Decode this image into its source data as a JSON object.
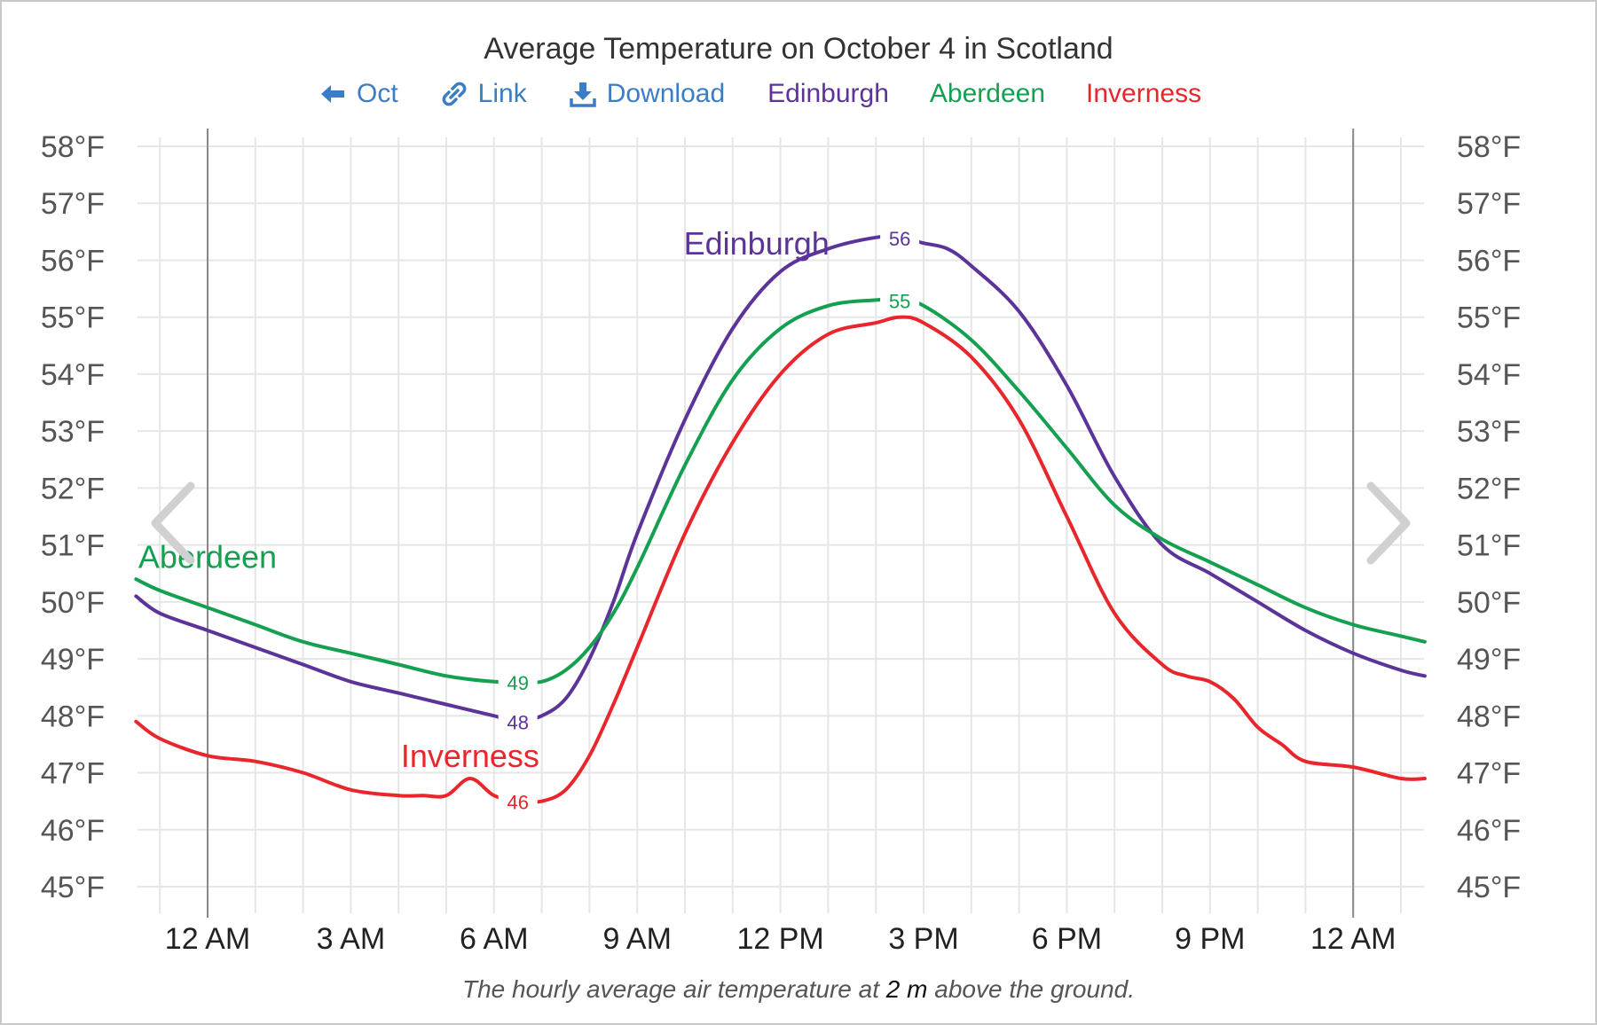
{
  "title": "Average Temperature on October 4 in Scotland",
  "toolbar": {
    "back_label": "Oct",
    "link_label": "Link",
    "download_label": "Download"
  },
  "legend": [
    {
      "name": "Edinburgh",
      "color": "#5b3399"
    },
    {
      "name": "Aberdeen",
      "color": "#14a050"
    },
    {
      "name": "Inverness",
      "color": "#e8262b"
    }
  ],
  "caption": {
    "pre": "The hourly average air temperature at ",
    "value": "2 m",
    "post": " above the ground."
  },
  "icons": {
    "back": "arrow-left-icon",
    "link": "link-icon",
    "download": "download-icon",
    "prev": "chevron-left-icon",
    "next": "chevron-right-icon"
  },
  "chart_data": {
    "type": "line",
    "ylim": [
      45,
      58
    ],
    "yticks": [
      "45°F",
      "46°F",
      "47°F",
      "48°F",
      "49°F",
      "50°F",
      "51°F",
      "52°F",
      "53°F",
      "54°F",
      "55°F",
      "56°F",
      "57°F",
      "58°F"
    ],
    "xlim": [
      -1.5,
      25.5
    ],
    "xticks": [
      {
        "hour": 0,
        "label": "12 AM"
      },
      {
        "hour": 3,
        "label": "3 AM"
      },
      {
        "hour": 6,
        "label": "6 AM"
      },
      {
        "hour": 9,
        "label": "9 AM"
      },
      {
        "hour": 12,
        "label": "12 PM"
      },
      {
        "hour": 15,
        "label": "3 PM"
      },
      {
        "hour": 18,
        "label": "6 PM"
      },
      {
        "hour": 21,
        "label": "9 PM"
      },
      {
        "hour": 24,
        "label": "12 AM"
      }
    ],
    "day_boundaries": [
      0,
      24
    ],
    "grid": true,
    "series": [
      {
        "name": "Edinburgh",
        "color": "#5b3399",
        "x": [
          -1.5,
          -1,
          0,
          1,
          2,
          3,
          4,
          5,
          6,
          6.5,
          7,
          7.5,
          8,
          8.5,
          9,
          10,
          11,
          12,
          13,
          14,
          14.5,
          15,
          15.5,
          16,
          17,
          18,
          19,
          20,
          21,
          22,
          23,
          24,
          25,
          25.5
        ],
        "y": [
          50.1,
          49.8,
          49.5,
          49.2,
          48.9,
          48.6,
          48.4,
          48.2,
          48.0,
          47.9,
          48.0,
          48.3,
          49.0,
          50.0,
          51.2,
          53.2,
          54.8,
          55.8,
          56.2,
          56.4,
          56.4,
          56.3,
          56.2,
          55.9,
          55.1,
          53.8,
          52.2,
          51.0,
          50.5,
          50.0,
          49.5,
          49.1,
          48.8,
          48.7
        ],
        "labels": [
          {
            "x": 6.5,
            "value": "48"
          },
          {
            "x": 14.5,
            "value": "56"
          }
        ],
        "name_label_at": {
          "x": 11.5,
          "y": 56.1
        }
      },
      {
        "name": "Aberdeen",
        "color": "#14a050",
        "x": [
          -1.5,
          -1,
          0,
          1,
          2,
          3,
          4,
          5,
          6,
          6.5,
          7,
          7.5,
          8,
          8.5,
          9,
          10,
          11,
          12,
          13,
          14,
          14.5,
          15,
          16,
          17,
          18,
          19,
          20,
          21,
          22,
          23,
          24,
          25,
          25.5
        ],
        "y": [
          50.4,
          50.2,
          49.9,
          49.6,
          49.3,
          49.1,
          48.9,
          48.7,
          48.6,
          48.6,
          48.6,
          48.8,
          49.2,
          49.8,
          50.6,
          52.4,
          53.9,
          54.8,
          55.2,
          55.3,
          55.3,
          55.2,
          54.6,
          53.7,
          52.7,
          51.7,
          51.1,
          50.7,
          50.3,
          49.9,
          49.6,
          49.4,
          49.3
        ],
        "labels": [
          {
            "x": 6.5,
            "value": "49"
          },
          {
            "x": 14.5,
            "value": "55"
          }
        ],
        "name_label_at": {
          "x": 0,
          "y": 50.6
        }
      },
      {
        "name": "Inverness",
        "color": "#e8262b",
        "x": [
          -1.5,
          -1,
          0,
          1,
          2,
          3,
          4,
          4.5,
          5,
          5.5,
          6,
          6.5,
          7,
          7.5,
          8,
          8.5,
          9,
          10,
          11,
          12,
          13,
          14,
          14.5,
          15,
          16,
          17,
          18,
          19,
          20,
          20.5,
          21,
          21.5,
          22,
          22.5,
          23,
          24,
          25,
          25.5
        ],
        "y": [
          47.9,
          47.6,
          47.3,
          47.2,
          47.0,
          46.7,
          46.6,
          46.6,
          46.6,
          46.9,
          46.6,
          46.5,
          46.5,
          46.7,
          47.3,
          48.2,
          49.2,
          51.2,
          52.8,
          54.0,
          54.7,
          54.9,
          55.0,
          54.9,
          54.3,
          53.2,
          51.5,
          49.8,
          48.9,
          48.7,
          48.6,
          48.3,
          47.8,
          47.5,
          47.2,
          47.1,
          46.9,
          46.9
        ],
        "labels": [
          {
            "x": 6.5,
            "value": "46"
          }
        ],
        "name_label_at": {
          "x": 5.5,
          "y": 47.1
        }
      }
    ]
  }
}
